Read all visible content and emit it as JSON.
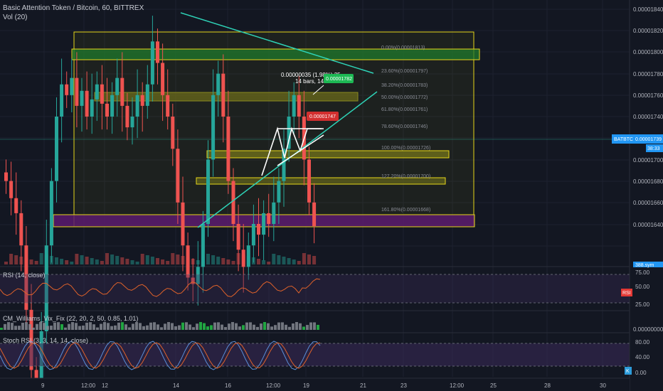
{
  "header": {
    "title": "Basic Attention Token / Bitcoin, 60, BITTREX",
    "volume_label": "Vol (20)"
  },
  "colors": {
    "background": "#131722",
    "up": "#26a69a",
    "down": "#ef5350",
    "trendline": "#2ed3b7",
    "box": "#e6d61a",
    "zone_green": "#1f7a2c",
    "zone_olive": "#6f6f1a",
    "zone_purple": "#5a1a6e",
    "rsi_line": "#e0622a",
    "stoch_k": "#5a8fd8",
    "stoch_d": "#e0622a",
    "band": "#3b2a5a",
    "price_tag": "#2196f3",
    "pattern": "#ffffff"
  },
  "price_axis": {
    "ticks": [
      "0.00001840",
      "0.00001820",
      "0.00001800",
      "0.00001780",
      "0.00001760",
      "0.00001740",
      "0.00001720",
      "0.00001700",
      "0.00001680",
      "0.00001660",
      "0.00001640"
    ],
    "current_symbol": "BATBTC",
    "current_price": "0.00001739",
    "countdown": "38:33",
    "vol_tag": "388.sym"
  },
  "fib_levels": [
    {
      "label": "0.00%(0.00001813)"
    },
    {
      "label": "23.60%(0.00001797)"
    },
    {
      "label": "38.20%(0.00001783)"
    },
    {
      "label": "50.00%(0.00001772)"
    },
    {
      "label": "61.80%(0.00001761)"
    },
    {
      "label": "78.60%(0.00001746)"
    },
    {
      "label": "100.00%(0.00001726)"
    },
    {
      "label": "127.20%(0.00001700)"
    },
    {
      "label": "161.80%(0.00001668)"
    }
  ],
  "annotations": {
    "measure_line1": "0.00000035 (1.98%) 35",
    "measure_line2": "14 bars, 14h",
    "green_tag": "0.00001782",
    "red_tag": "0.00001747"
  },
  "rsi": {
    "label": "RSI (14, close)",
    "ticks": [
      "75.00",
      "50.00",
      "25.00"
    ],
    "tag": "RSI"
  },
  "vix": {
    "label": "CM_Williams_Vix_Fix (22, 20, 2, 50, 0.85, 1.01)",
    "tick": "0.00000000"
  },
  "stoch": {
    "label": "Stoch RSI (3, 3, 14, 14, close)",
    "ticks": [
      "80.00",
      "40.00",
      "0.00"
    ],
    "tag": "K"
  },
  "time_axis": [
    "9",
    "12:00",
    "12",
    "14",
    "16",
    "12:00",
    "19",
    "21",
    "23",
    "12:00",
    "25",
    "28",
    "30"
  ],
  "chart_data": {
    "type": "candlestick",
    "series": [
      {
        "name": "BATBTC",
        "closes": [
          1760,
          1752,
          1745,
          1730,
          1700,
          1672,
          1668,
          1690,
          1730,
          1760,
          1790,
          1805,
          1800,
          1808,
          1795,
          1802,
          1790,
          1798,
          1805,
          1796,
          1790,
          1800,
          1808,
          1795,
          1785,
          1790,
          1800,
          1795,
          1805,
          1825,
          1815,
          1800,
          1790,
          1775,
          1750,
          1730,
          1715,
          1712,
          1720,
          1740,
          1770,
          1800,
          1810,
          1790,
          1760,
          1740,
          1728,
          1720,
          1730,
          1740,
          1735,
          1745,
          1740,
          1750,
          1760,
          1775,
          1790,
          1800,
          1790,
          1770,
          1750,
          1739
        ]
      }
    ]
  }
}
